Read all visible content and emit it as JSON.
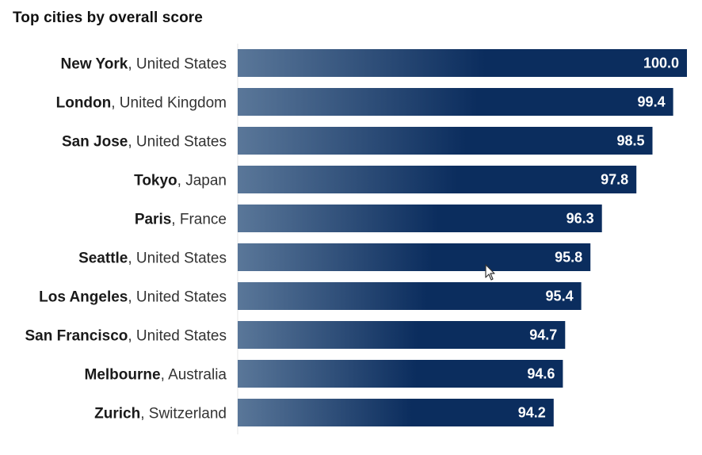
{
  "chart_data": {
    "type": "bar",
    "orientation": "horizontal",
    "title": "Top cities by overall score",
    "xlabel": "",
    "ylabel": "",
    "xlim": [
      0,
      100
    ],
    "categories": [
      {
        "city": "New York",
        "country": ", United States"
      },
      {
        "city": "London",
        "country": ", United Kingdom"
      },
      {
        "city": "San Jose",
        "country": ", United States"
      },
      {
        "city": "Tokyo",
        "country": ", Japan"
      },
      {
        "city": "Paris",
        "country": ", France"
      },
      {
        "city": "Seattle",
        "country": ", United States"
      },
      {
        "city": "Los Angeles",
        "country": ", United States"
      },
      {
        "city": "San Francisco",
        "country": ", United States"
      },
      {
        "city": "Melbourne",
        "country": ", Australia"
      },
      {
        "city": "Zurich",
        "country": ", Switzerland"
      }
    ],
    "values": [
      100.0,
      99.4,
      98.5,
      97.8,
      96.3,
      95.8,
      95.4,
      94.7,
      94.6,
      94.2
    ],
    "value_labels": [
      "100.0",
      "99.4",
      "98.5",
      "97.8",
      "96.3",
      "95.8",
      "95.4",
      "94.7",
      "94.6",
      "94.2"
    ],
    "colors": {
      "bar_start": "#5a7799",
      "bar_end": "#0b2d5e",
      "axis": "#e6e6e6"
    }
  },
  "cursor": {
    "icon": "mouse-pointer-icon"
  }
}
